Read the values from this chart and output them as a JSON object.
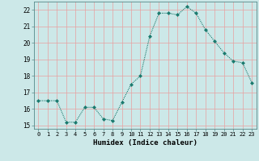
{
  "x": [
    0,
    1,
    2,
    3,
    4,
    5,
    6,
    7,
    8,
    9,
    10,
    11,
    12,
    13,
    14,
    15,
    16,
    17,
    18,
    19,
    20,
    21,
    22,
    23
  ],
  "y": [
    16.5,
    16.5,
    16.5,
    15.2,
    15.2,
    16.1,
    16.1,
    15.4,
    15.3,
    16.4,
    17.5,
    18.0,
    20.4,
    21.8,
    21.8,
    21.7,
    22.2,
    21.8,
    20.8,
    20.1,
    19.4,
    18.9,
    18.8,
    17.6
  ],
  "line_color": "#1a7a6e",
  "marker": "D",
  "marker_size": 2,
  "bg_color": "#cce8e8",
  "grid_color": "#e8a0a0",
  "xlabel": "Humidex (Indice chaleur)",
  "ylim": [
    14.8,
    22.5
  ],
  "xlim": [
    -0.5,
    23.5
  ],
  "yticks": [
    15,
    16,
    17,
    18,
    19,
    20,
    21,
    22
  ],
  "xticks": [
    0,
    1,
    2,
    3,
    4,
    5,
    6,
    7,
    8,
    9,
    10,
    11,
    12,
    13,
    14,
    15,
    16,
    17,
    18,
    19,
    20,
    21,
    22,
    23
  ],
  "xtick_labels": [
    "0",
    "1",
    "2",
    "3",
    "4",
    "5",
    "6",
    "7",
    "8",
    "9",
    "10",
    "11",
    "12",
    "13",
    "14",
    "15",
    "16",
    "17",
    "18",
    "19",
    "20",
    "21",
    "22",
    "23"
  ],
  "ytick_labels": [
    "15",
    "16",
    "17",
    "18",
    "19",
    "20",
    "21",
    "22"
  ]
}
